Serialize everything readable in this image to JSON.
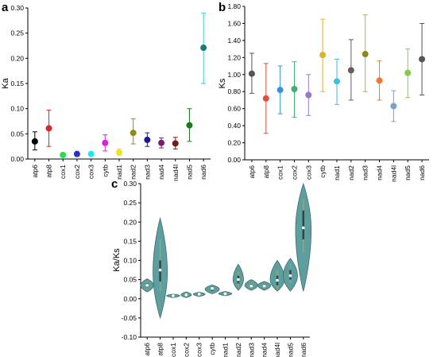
{
  "panels": {
    "a": {
      "letter": "a",
      "ylabel": "Ka",
      "type": "scatter",
      "ylim": [
        0,
        0.3
      ],
      "yticks": [
        "0.00",
        "0.05",
        "0.10",
        "0.15",
        "0.20",
        "0.25",
        "0.30"
      ],
      "categories": [
        "atp6",
        "atp8",
        "cox1",
        "cox2",
        "cox3",
        "cytb",
        "nad1",
        "nad2",
        "nad3",
        "nad4",
        "nad4l",
        "nad5",
        "nad6"
      ],
      "values": [
        0.035,
        0.061,
        0.008,
        0.01,
        0.01,
        0.032,
        0.013,
        0.052,
        0.038,
        0.032,
        0.031,
        0.067,
        0.221
      ],
      "err_low": [
        0.018,
        0.025,
        0.005,
        0.006,
        0.006,
        0.016,
        0.007,
        0.03,
        0.025,
        0.022,
        0.02,
        0.035,
        0.15
      ],
      "err_high": [
        0.054,
        0.097,
        0.011,
        0.014,
        0.014,
        0.048,
        0.02,
        0.08,
        0.052,
        0.042,
        0.043,
        0.1,
        0.29
      ],
      "colors": [
        "#000000",
        "#d42a2a",
        "#24e04a",
        "#2431c8",
        "#1ce8f0",
        "#e21ce0",
        "#f2e21c",
        "#8c8c1a",
        "#1a1a8c",
        "#7a1a7a",
        "#7a1a1a",
        "#1a7a1a",
        "#1a7a7a"
      ],
      "err_colors": [
        "#000000",
        "#d42a2a",
        "#24e04a",
        "#2431c8",
        "#1ce8f0",
        "#e21ce0",
        "#f2e21c",
        "#8c8c1a",
        "#1a1a8c",
        "#7a1a7a",
        "#7a1a1a",
        "#1a7a1a",
        "#2ad2d2"
      ]
    },
    "b": {
      "letter": "b",
      "ylabel": "Ks",
      "type": "scatter",
      "ylim": [
        0,
        1.8
      ],
      "yticks": [
        "0.00",
        "0.20",
        "0.40",
        "0.60",
        "0.80",
        "1.00",
        "1.20",
        "1.40",
        "1.60",
        "1.80"
      ],
      "categories": [
        "atp6",
        "atp8",
        "cox1",
        "cox2",
        "cox3",
        "cytb",
        "nad1",
        "nad2",
        "nad3",
        "nad4",
        "nad4l",
        "nad5",
        "nad6"
      ],
      "values": [
        1.01,
        0.72,
        0.82,
        0.83,
        0.76,
        1.23,
        0.92,
        1.05,
        1.24,
        0.93,
        0.63,
        1.02,
        1.18
      ],
      "err_low": [
        0.78,
        0.31,
        0.54,
        0.5,
        0.52,
        0.8,
        0.65,
        0.7,
        0.8,
        0.7,
        0.45,
        0.73,
        0.76
      ],
      "err_high": [
        1.25,
        1.13,
        1.1,
        1.15,
        1.0,
        1.65,
        1.18,
        1.41,
        1.7,
        1.16,
        0.81,
        1.3,
        1.6
      ],
      "colors": [
        "#555555",
        "#e0503a",
        "#3a90e0",
        "#40b070",
        "#9a78c8",
        "#d6b430",
        "#3ac0e0",
        "#6a5a5a",
        "#8a8a1a",
        "#f07830",
        "#7aa0c8",
        "#8ac84a",
        "#555555"
      ],
      "err_colors": [
        "#555555",
        "#e0503a",
        "#3a90e0",
        "#40b070",
        "#9a78c8",
        "#d6b430",
        "#3ac0e0",
        "#6a5a5a",
        "#b0b050",
        "#f07830",
        "#7aa0c8",
        "#8ac84a",
        "#555555"
      ]
    },
    "c": {
      "letter": "c",
      "ylabel": "Ka/Ks",
      "type": "violin",
      "ylim": [
        -0.1,
        0.3
      ],
      "yticks": [
        "-0.10",
        "-0.05",
        "0.00",
        "0.05",
        "0.10",
        "0.15",
        "0.20",
        "0.25",
        "0.30"
      ],
      "categories": [
        "atp6",
        "atp8",
        "cox1",
        "cox2",
        "cox3",
        "cytb",
        "nad1",
        "nad2",
        "nad3",
        "nad4",
        "nad4l",
        "nad5",
        "nad6"
      ],
      "violin_min": [
        0.018,
        -0.05,
        0.003,
        0.003,
        0.006,
        0.013,
        0.008,
        0.022,
        0.022,
        0.022,
        0.02,
        0.02,
        0.02
      ],
      "violin_max": [
        0.052,
        0.21,
        0.012,
        0.018,
        0.017,
        0.036,
        0.019,
        0.09,
        0.05,
        0.045,
        0.1,
        0.105,
        0.3
      ],
      "violin_peak": [
        0.035,
        0.07,
        0.008,
        0.01,
        0.012,
        0.025,
        0.013,
        0.05,
        0.035,
        0.035,
        0.05,
        0.06,
        0.18
      ],
      "violin_halfwidth": [
        0.5,
        0.55,
        0.5,
        0.4,
        0.45,
        0.55,
        0.5,
        0.4,
        0.5,
        0.5,
        0.55,
        0.55,
        0.6
      ],
      "median": [
        0.035,
        0.075,
        0.008,
        0.01,
        0.012,
        0.027,
        0.013,
        0.05,
        0.033,
        0.033,
        0.048,
        0.06,
        0.185
      ],
      "q1": [
        0.03,
        0.045,
        0.007,
        0.008,
        0.01,
        0.02,
        0.011,
        0.04,
        0.028,
        0.028,
        0.035,
        0.05,
        0.155
      ],
      "q3": [
        0.04,
        0.1,
        0.009,
        0.013,
        0.014,
        0.032,
        0.016,
        0.06,
        0.038,
        0.038,
        0.06,
        0.075,
        0.23
      ],
      "whisker_low": [
        0.025,
        0.02,
        0.006,
        0.006,
        0.009,
        0.017,
        0.01,
        0.03,
        0.025,
        0.025,
        0.025,
        0.04,
        0.12
      ],
      "whisker_high": [
        0.045,
        0.155,
        0.01,
        0.015,
        0.015,
        0.034,
        0.017,
        0.07,
        0.042,
        0.041,
        0.075,
        0.09,
        0.26
      ],
      "violin_color": "#5f9e9e",
      "whisker_color": "#c8a832",
      "median_color": "#ffffff"
    }
  },
  "chart_data": [
    {
      "type": "scatter",
      "title": "",
      "xlabel": "",
      "ylabel": "Ka",
      "ylim": [
        0,
        0.3
      ],
      "categories": [
        "atp6",
        "atp8",
        "cox1",
        "cox2",
        "cox3",
        "cytb",
        "nad1",
        "nad2",
        "nad3",
        "nad4",
        "nad4l",
        "nad5",
        "nad6"
      ],
      "values": [
        0.035,
        0.061,
        0.008,
        0.01,
        0.01,
        0.032,
        0.013,
        0.052,
        0.038,
        0.032,
        0.031,
        0.067,
        0.221
      ]
    },
    {
      "type": "scatter",
      "title": "",
      "xlabel": "",
      "ylabel": "Ks",
      "ylim": [
        0,
        1.8
      ],
      "categories": [
        "atp6",
        "atp8",
        "cox1",
        "cox2",
        "cox3",
        "cytb",
        "nad1",
        "nad2",
        "nad3",
        "nad4",
        "nad4l",
        "nad5",
        "nad6"
      ],
      "values": [
        1.01,
        0.72,
        0.82,
        0.83,
        0.76,
        1.23,
        0.92,
        1.05,
        1.24,
        0.93,
        0.63,
        1.02,
        1.18
      ]
    },
    {
      "type": "violin",
      "title": "",
      "xlabel": "",
      "ylabel": "Ka/Ks",
      "ylim": [
        -0.1,
        0.3
      ],
      "categories": [
        "atp6",
        "atp8",
        "cox1",
        "cox2",
        "cox3",
        "cytb",
        "nad1",
        "nad2",
        "nad3",
        "nad4",
        "nad4l",
        "nad5",
        "nad6"
      ],
      "median": [
        0.035,
        0.075,
        0.008,
        0.01,
        0.012,
        0.027,
        0.013,
        0.05,
        0.033,
        0.033,
        0.048,
        0.06,
        0.185
      ]
    }
  ]
}
